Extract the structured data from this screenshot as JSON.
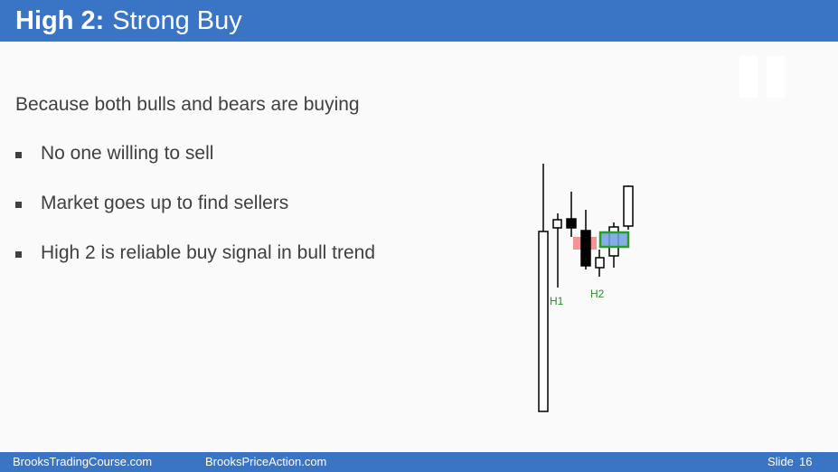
{
  "slide": {
    "title_bold": "High 2:",
    "title_rest": "Strong Buy",
    "intro": "Because both bulls and bears are buying",
    "bullets": [
      "No one willing to sell",
      "Market goes up to find sellers",
      "High 2 is reliable buy signal in bull trend"
    ]
  },
  "chart": {
    "labels": {
      "h1": "H1",
      "h2": "H2"
    },
    "colors": {
      "label": "#2e8b2e",
      "highlight_red": "#f28080",
      "highlight_blue": "#6fa0e0",
      "highlight_green_border": "#2a9a2a"
    }
  },
  "footer": {
    "site1": "BrooksTradingCourse.com",
    "site2": "BrooksPriceAction.com",
    "slide_label": "Slide",
    "slide_number": "16"
  }
}
